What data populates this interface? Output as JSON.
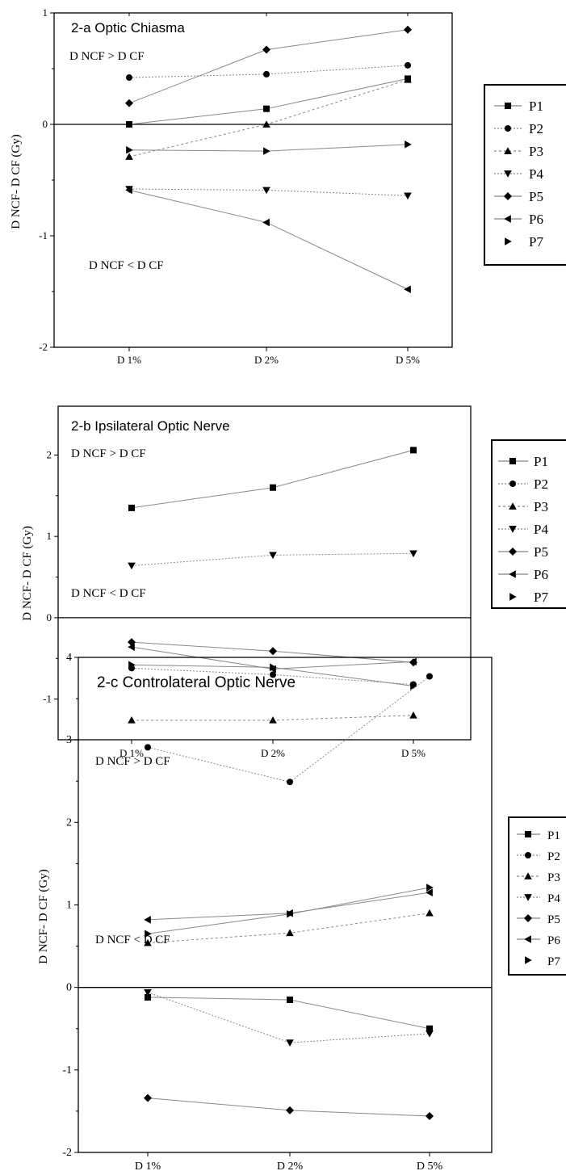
{
  "chart_data": [
    {
      "type": "line",
      "title": "2-a Optic Chiasma",
      "xlabel": "",
      "ylabel": "D NCF- D CF (Gy)",
      "categories": [
        "D 1%",
        "D 2%",
        "D 5%"
      ],
      "ylim": [
        -2,
        1
      ],
      "yticks": [
        "1",
        "0",
        "-1",
        "-2"
      ],
      "annotations": [
        "D NCF > D CF",
        "D NCF < D CF"
      ],
      "legend_position": "right",
      "series": [
        {
          "name": "P1",
          "marker": "square",
          "values": [
            0.0,
            0.14,
            0.41
          ]
        },
        {
          "name": "P2",
          "marker": "circle",
          "values": [
            0.42,
            0.45,
            0.53
          ]
        },
        {
          "name": "P3",
          "marker": "triangle-up",
          "values": [
            -0.29,
            0.0,
            0.4
          ]
        },
        {
          "name": "P4",
          "marker": "triangle-down",
          "values": [
            -0.58,
            -0.59,
            -0.64
          ]
        },
        {
          "name": "P5",
          "marker": "diamond",
          "values": [
            0.19,
            0.67,
            0.85
          ]
        },
        {
          "name": "P6",
          "marker": "triangle-left",
          "values": [
            -0.59,
            -0.88,
            -1.48
          ]
        },
        {
          "name": "P7",
          "marker": "triangle-right",
          "values": [
            -0.23,
            -0.24,
            -0.18
          ]
        }
      ]
    },
    {
      "type": "line",
      "title": "2-b Ipsilateral Optic Nerve",
      "xlabel": "",
      "ylabel": "D NCF- D CF (Gy)",
      "categories": [
        "D 1%",
        "D 2%",
        "D 5%"
      ],
      "ylim": [
        -1.5,
        2.6
      ],
      "yticks": [
        "2",
        "1",
        "0",
        "-1"
      ],
      "annotations": [
        "D NCF > D CF",
        "D NCF < D CF"
      ],
      "legend_position": "right",
      "series": [
        {
          "name": "P1",
          "marker": "square",
          "values": [
            1.35,
            1.6,
            2.06
          ]
        },
        {
          "name": "P2",
          "marker": "circle",
          "values": [
            -0.62,
            -0.7,
            -0.82
          ]
        },
        {
          "name": "P3",
          "marker": "triangle-up",
          "values": [
            -1.26,
            -1.26,
            -1.2
          ]
        },
        {
          "name": "P4",
          "marker": "triangle-down",
          "values": [
            0.64,
            0.77,
            0.79
          ]
        },
        {
          "name": "P5",
          "marker": "diamond",
          "values": [
            -0.3,
            -0.41,
            -0.55
          ]
        },
        {
          "name": "P6",
          "marker": "triangle-left",
          "values": [
            -0.36,
            -0.63,
            -0.54
          ]
        },
        {
          "name": "P7",
          "marker": "triangle-right",
          "values": [
            -0.58,
            -0.61,
            -0.84
          ]
        }
      ]
    },
    {
      "type": "line",
      "title": "2-c Controlateral Optic Nerve",
      "xlabel": "",
      "ylabel": "D NCF- D CF (Gy)",
      "categories": [
        "D 1%",
        "D 2%",
        "D 5%"
      ],
      "ylim": [
        -2,
        4
      ],
      "yticks": [
        "4",
        "3",
        "2",
        "1",
        "0",
        "-1",
        "-2"
      ],
      "annotations": [
        "D NCF > D CF",
        "D NCF < D CF"
      ],
      "legend_position": "right",
      "series": [
        {
          "name": "P1",
          "marker": "square",
          "values": [
            -0.12,
            -0.15,
            -0.5
          ]
        },
        {
          "name": "P2",
          "marker": "circle",
          "values": [
            2.91,
            2.49,
            3.77
          ]
        },
        {
          "name": "P3",
          "marker": "triangle-up",
          "values": [
            0.54,
            0.66,
            0.9
          ]
        },
        {
          "name": "P4",
          "marker": "triangle-down",
          "values": [
            -0.06,
            -0.67,
            -0.56
          ]
        },
        {
          "name": "P5",
          "marker": "diamond",
          "values": [
            -1.34,
            -1.49,
            -1.56
          ]
        },
        {
          "name": "P6",
          "marker": "triangle-left",
          "values": [
            0.82,
            0.9,
            1.15
          ]
        },
        {
          "name": "P7",
          "marker": "triangle-right",
          "values": [
            0.65,
            0.89,
            1.21
          ]
        }
      ]
    }
  ]
}
